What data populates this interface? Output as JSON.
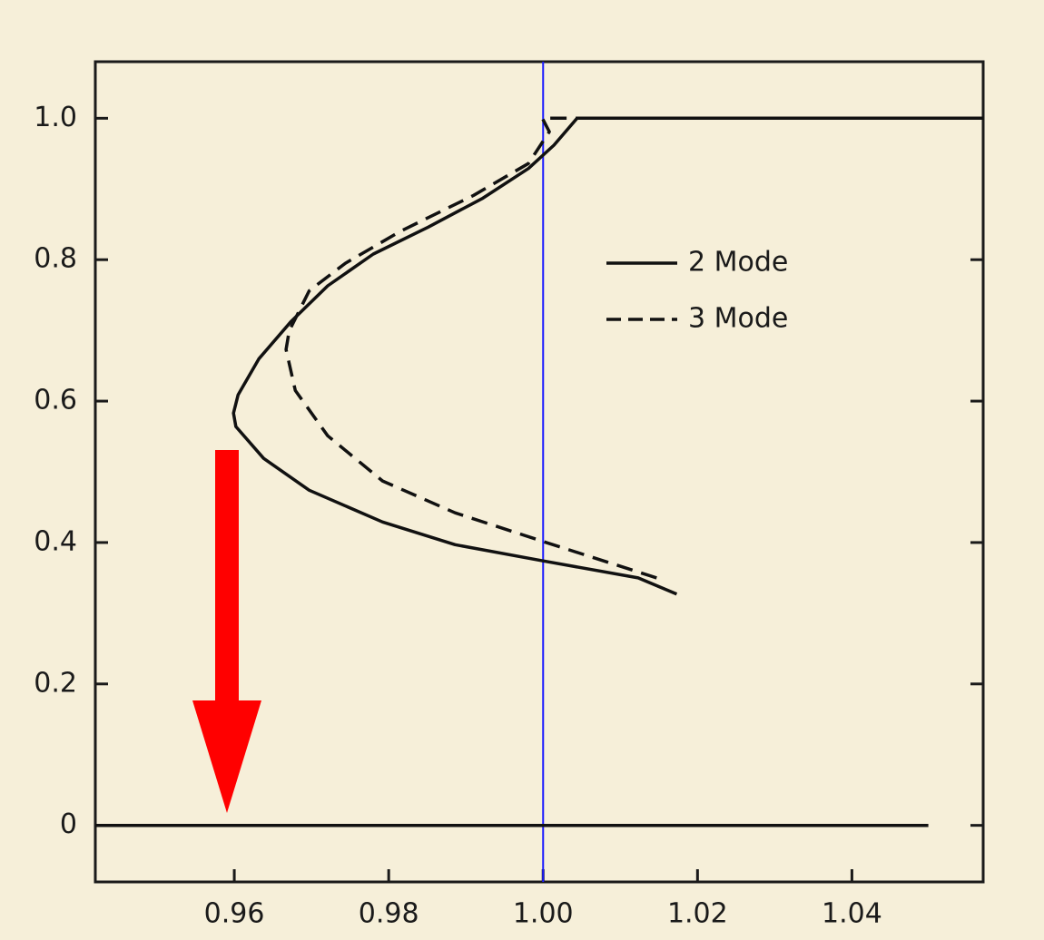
{
  "chart_data": {
    "type": "line",
    "xlim": [
      0.942,
      1.057
    ],
    "ylim": [
      -0.08,
      1.08
    ],
    "xticks": [
      0.96,
      0.98,
      {
        "value": 1,
        "label": "1.00"
      },
      1.02,
      1.04
    ],
    "yticks": [
      0,
      0.2,
      0.4,
      0.6,
      0.8,
      {
        "value": 1,
        "label": "1.0"
      }
    ],
    "legend": "upper right",
    "vline": {
      "x": 1,
      "color": "#1a1aff"
    },
    "series": [
      {
        "name": "2 Mode",
        "color": "#111111",
        "dash": false,
        "x": [
          1.0173,
          1.0123,
          1.0,
          0.9886,
          0.9792,
          0.9697,
          0.9638,
          0.9602,
          0.9599,
          0.9605,
          0.9632,
          0.9673,
          0.9721,
          0.978,
          0.9851,
          0.9922,
          0.9981,
          1.0014,
          1.0044,
          1.057,
          null,
          0.942,
          1.0499
        ],
        "values": [
          0.327,
          0.35,
          0.374,
          0.397,
          0.429,
          0.474,
          0.519,
          0.564,
          0.583,
          0.609,
          0.66,
          0.712,
          0.763,
          0.808,
          0.846,
          0.887,
          0.929,
          0.962,
          1.0,
          1.0,
          null,
          0,
          0
        ]
      },
      {
        "name": "3 Mode",
        "color": "#111111",
        "dash": true,
        "x": [
          1.0147,
          1.0004,
          0.9886,
          0.9792,
          0.9721,
          0.9679,
          0.9667,
          0.9671,
          0.9697,
          0.9744,
          0.9815,
          0.991,
          0.9981,
          1.0008,
          0.9999,
          1.0052
        ],
        "values": [
          0.35,
          0.4,
          0.442,
          0.487,
          0.551,
          0.615,
          0.673,
          0.699,
          0.756,
          0.795,
          0.84,
          0.891,
          0.936,
          0.981,
          1.0,
          1.0
        ]
      }
    ]
  }
}
